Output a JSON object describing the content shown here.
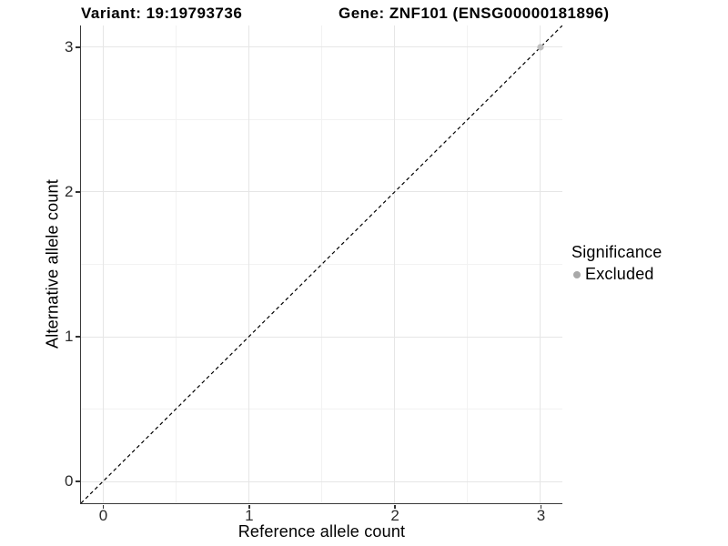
{
  "header": {
    "variant_title": "Variant: 19:19793736",
    "gene_title": "Gene: ZNF101 (ENSG00000181896)"
  },
  "chart_data": {
    "type": "scatter",
    "title": "Variant: 19:19793736   Gene: ZNF101 (ENSG00000181896)",
    "xlabel": "Reference allele count",
    "ylabel": "Alternative allele count",
    "xlim": [
      -0.15,
      3.15
    ],
    "ylim": [
      -0.15,
      3.15
    ],
    "x_ticks": [
      0,
      1,
      2,
      3
    ],
    "y_ticks": [
      0,
      1,
      2,
      3
    ],
    "x_minor": [
      0.5,
      1.5,
      2.5
    ],
    "y_minor": [
      0.5,
      1.5,
      2.5
    ],
    "grid": true,
    "points": [
      {
        "x": 3,
        "y": 3,
        "significance": "Excluded"
      }
    ],
    "reference_line": {
      "equation": "y = x",
      "style": "dashed",
      "color": "#000000"
    },
    "legend": {
      "title": "Significance",
      "position": "right",
      "entries": [
        {
          "label": "Excluded",
          "color": "#bebebe",
          "marker": "circle"
        }
      ]
    },
    "colors": {
      "point": "#c0c0c0",
      "legend_dot": "#a9a9a9",
      "axis_line": "#3a3a3a",
      "grid_major": "#e6e6e6",
      "grid_minor": "#f2f2f2",
      "background": "#ffffff"
    }
  }
}
